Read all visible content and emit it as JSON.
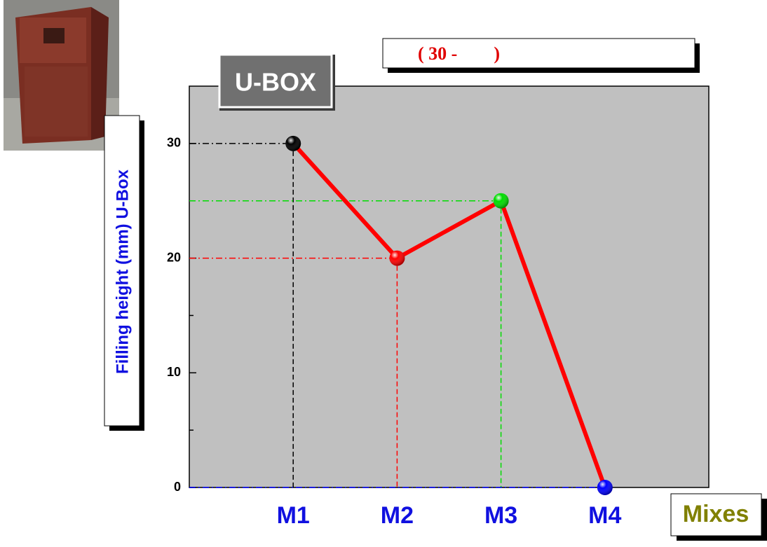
{
  "chart_data": {
    "type": "line",
    "title": "U-BOX",
    "subtitle": "( 30 -        )",
    "x_label": "Mixes",
    "y_label": "Filling height (mm) U-Box",
    "categories": [
      "M1",
      "M2",
      "M3",
      "M4"
    ],
    "values": [
      30,
      20,
      25,
      0
    ],
    "color": "#ff0000",
    "point_colors": [
      "#000000",
      "#ff0000",
      "#00dd00",
      "#0000ff"
    ],
    "ylim": [
      0,
      35
    ],
    "yticks": [
      0,
      10,
      20,
      30
    ]
  }
}
